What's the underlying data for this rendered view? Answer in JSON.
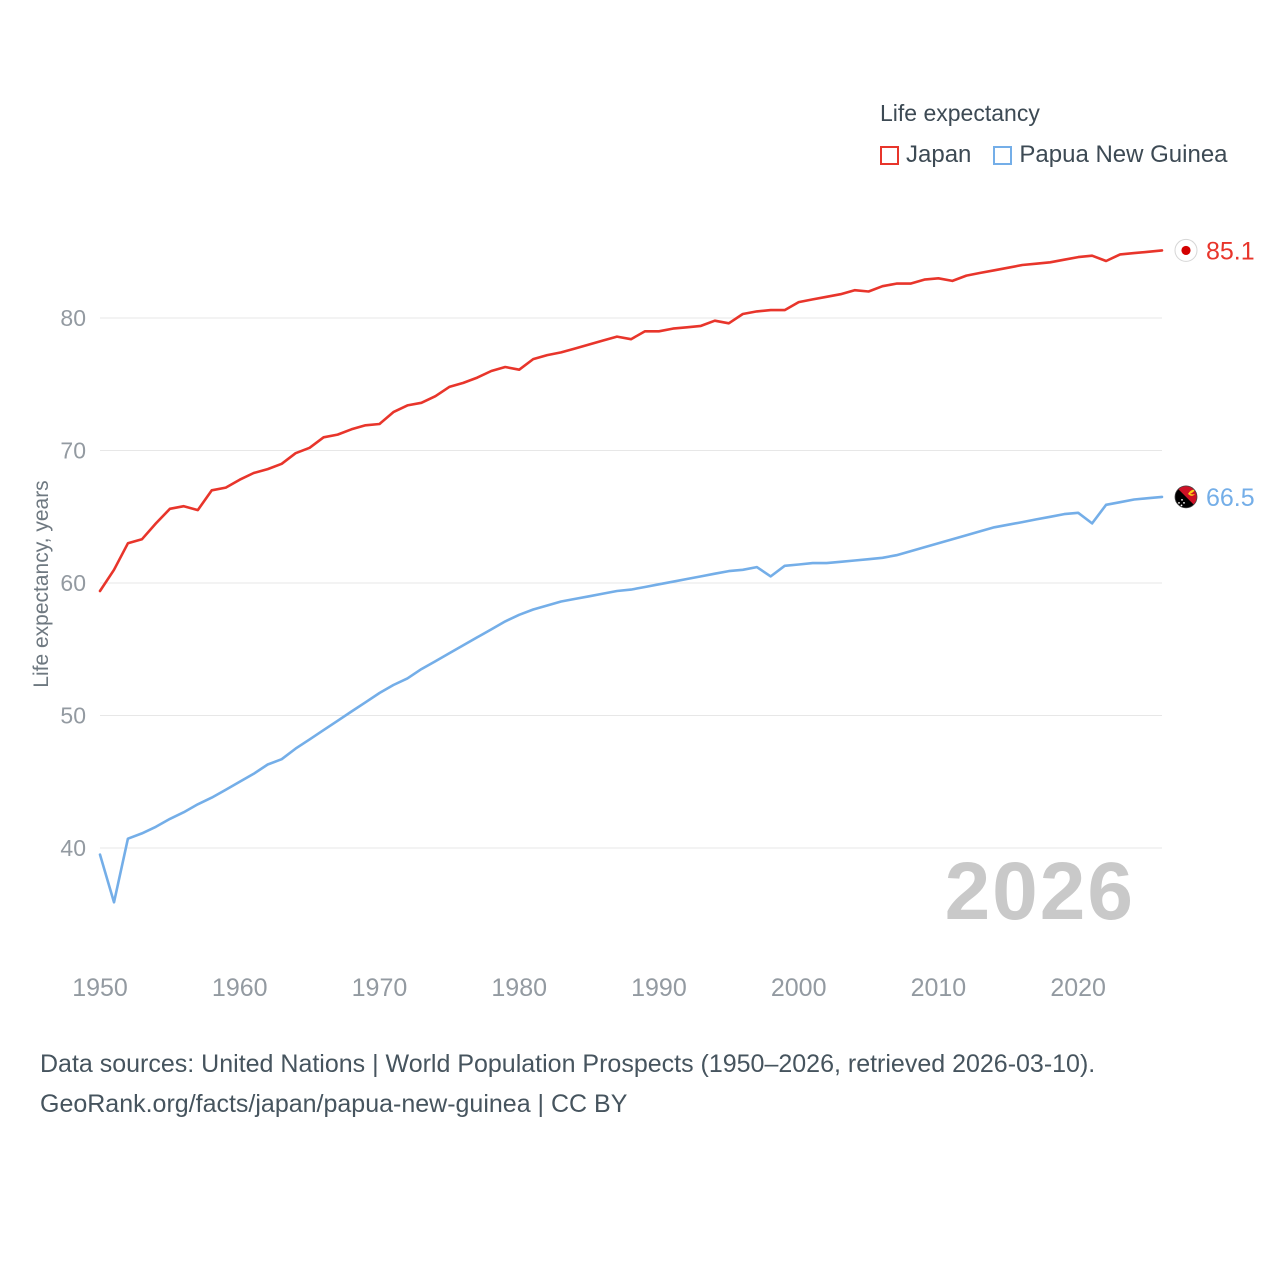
{
  "legend": {
    "title": "Life expectancy",
    "items": [
      {
        "label": "Japan",
        "color": "#e8352b"
      },
      {
        "label": "Papua New Guinea",
        "color": "#74aee8"
      }
    ]
  },
  "watermark": "2026",
  "footer": {
    "line1": "Data sources: United Nations | World Population Prospects (1950–2026, retrieved 2026-03-10).",
    "line2": "GeoRank.org/facts/japan/papua-new-guinea | CC BY"
  },
  "chart_data": {
    "type": "line",
    "title": "Life expectancy",
    "ylabel": "Life expectancy, years",
    "xlabel": "",
    "grid": "horizontal",
    "legend_position": "top-right",
    "ylim": [
      33,
      87
    ],
    "xlim": [
      1950,
      2026
    ],
    "xticks": [
      1950,
      1960,
      1970,
      1980,
      1990,
      2000,
      2010,
      2020
    ],
    "yticks": [
      40,
      50,
      60,
      70,
      80
    ],
    "x": [
      1950,
      1951,
      1952,
      1953,
      1954,
      1955,
      1956,
      1957,
      1958,
      1959,
      1960,
      1961,
      1962,
      1963,
      1964,
      1965,
      1966,
      1967,
      1968,
      1969,
      1970,
      1971,
      1972,
      1973,
      1974,
      1975,
      1976,
      1977,
      1978,
      1979,
      1980,
      1981,
      1982,
      1983,
      1984,
      1985,
      1986,
      1987,
      1988,
      1989,
      1990,
      1991,
      1992,
      1993,
      1994,
      1995,
      1996,
      1997,
      1998,
      1999,
      2000,
      2001,
      2002,
      2003,
      2004,
      2005,
      2006,
      2007,
      2008,
      2009,
      2010,
      2011,
      2012,
      2013,
      2014,
      2015,
      2016,
      2017,
      2018,
      2019,
      2020,
      2021,
      2022,
      2023,
      2024,
      2025,
      2026
    ],
    "series": [
      {
        "name": "Japan",
        "color": "#e8352b",
        "flag": "japan",
        "end_label": "85.1",
        "values": [
          59.4,
          61.0,
          63.0,
          63.3,
          64.5,
          65.6,
          65.8,
          65.5,
          67.0,
          67.2,
          67.8,
          68.3,
          68.6,
          69.0,
          69.8,
          70.2,
          71.0,
          71.2,
          71.6,
          71.9,
          72.0,
          72.9,
          73.4,
          73.6,
          74.1,
          74.8,
          75.1,
          75.5,
          76.0,
          76.3,
          76.1,
          76.9,
          77.2,
          77.4,
          77.7,
          78.0,
          78.3,
          78.6,
          78.4,
          79.0,
          79.0,
          79.2,
          79.3,
          79.4,
          79.8,
          79.6,
          80.3,
          80.5,
          80.6,
          80.6,
          81.2,
          81.4,
          81.6,
          81.8,
          82.1,
          82.0,
          82.4,
          82.6,
          82.6,
          82.9,
          83.0,
          82.8,
          83.2,
          83.4,
          83.6,
          83.8,
          84.0,
          84.1,
          84.2,
          84.4,
          84.6,
          84.7,
          84.3,
          84.8,
          84.9,
          85.0,
          85.1
        ]
      },
      {
        "name": "Papua New Guinea",
        "color": "#74aee8",
        "flag": "papua-new-guinea",
        "end_label": "66.5",
        "values": [
          39.5,
          35.9,
          40.7,
          41.1,
          41.6,
          42.2,
          42.7,
          43.3,
          43.8,
          44.4,
          45.0,
          45.6,
          46.3,
          46.7,
          47.5,
          48.2,
          48.9,
          49.6,
          50.3,
          51.0,
          51.7,
          52.3,
          52.8,
          53.5,
          54.1,
          54.7,
          55.3,
          55.9,
          56.5,
          57.1,
          57.6,
          58.0,
          58.3,
          58.6,
          58.8,
          59.0,
          59.2,
          59.4,
          59.5,
          59.7,
          59.9,
          60.1,
          60.3,
          60.5,
          60.7,
          60.9,
          61.0,
          61.2,
          60.5,
          61.3,
          61.4,
          61.5,
          61.5,
          61.6,
          61.7,
          61.8,
          61.9,
          62.1,
          62.4,
          62.7,
          63.0,
          63.3,
          63.6,
          63.9,
          64.2,
          64.4,
          64.6,
          64.8,
          65.0,
          65.2,
          65.3,
          64.5,
          65.9,
          66.1,
          66.3,
          66.4,
          66.5
        ]
      }
    ]
  }
}
